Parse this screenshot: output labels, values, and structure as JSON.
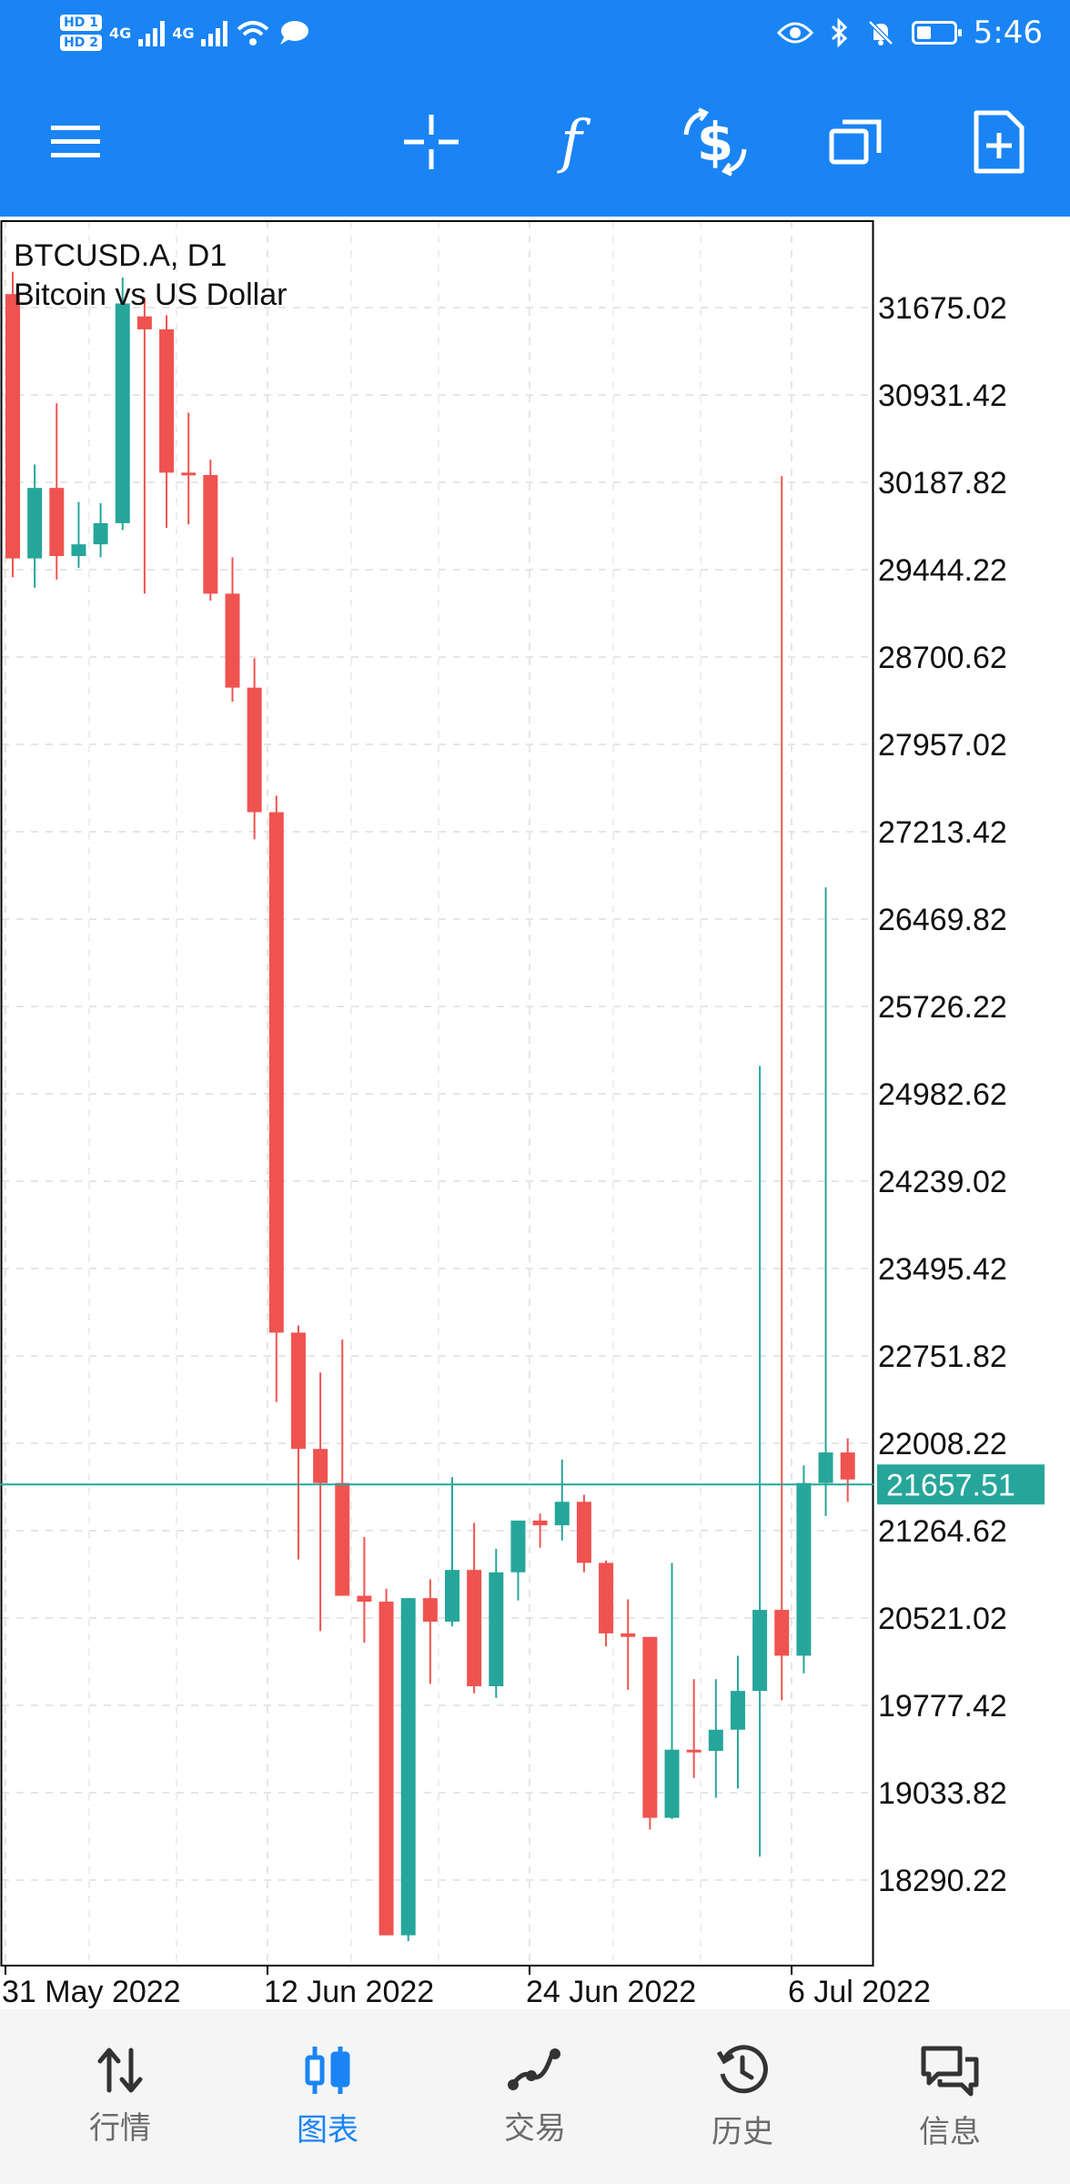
{
  "status_bar": {
    "hd_1": "HD 1",
    "hd_2": "HD 2",
    "network_1": "4G",
    "network_2": "4G",
    "time": "5:46"
  },
  "toolbar": {
    "menu_icon": "hamburger-icon",
    "buttons": [
      "crosshair-icon",
      "indicators-icon",
      "trade-icon",
      "objects-icon",
      "new-order-icon"
    ],
    "accent": "#1a84f4"
  },
  "chart_data": {
    "type": "candlestick",
    "title": "BTCUSD.A, D1",
    "subtitle": "Bitcoin vs US Dollar",
    "price_ticks": [
      "31675.02",
      "30931.42",
      "30187.82",
      "29444.22",
      "28700.62",
      "27957.02",
      "27213.42",
      "26469.82",
      "25726.22",
      "24982.62",
      "24239.02",
      "23495.42",
      "22751.82",
      "22008.22",
      "21264.62",
      "20521.02",
      "19777.42",
      "19033.82",
      "18290.22"
    ],
    "date_ticks": [
      "31 May 2022",
      "12 Jun 2022",
      "24 Jun 2022",
      "6 Jul 2022"
    ],
    "current_price": "21657.51",
    "current_price_value": 21657.51,
    "bull_color": "#26a69a",
    "bear_color": "#ef5350",
    "candles": [
      {
        "o": 31790,
        "h": 31980,
        "l": 29380,
        "c": 29540
      },
      {
        "o": 29540,
        "h": 30340,
        "l": 29290,
        "c": 30140
      },
      {
        "o": 30140,
        "h": 30860,
        "l": 29360,
        "c": 29560
      },
      {
        "o": 29560,
        "h": 30020,
        "l": 29460,
        "c": 29660
      },
      {
        "o": 29660,
        "h": 30010,
        "l": 29550,
        "c": 29840
      },
      {
        "o": 29840,
        "h": 31930,
        "l": 29780,
        "c": 31710
      },
      {
        "o": 31600,
        "h": 31760,
        "l": 29240,
        "c": 31490
      },
      {
        "o": 31490,
        "h": 31610,
        "l": 29800,
        "c": 30270
      },
      {
        "o": 30270,
        "h": 30780,
        "l": 29830,
        "c": 30250
      },
      {
        "o": 30250,
        "h": 30380,
        "l": 29180,
        "c": 29240
      },
      {
        "o": 29240,
        "h": 29550,
        "l": 28320,
        "c": 28440
      },
      {
        "o": 28440,
        "h": 28690,
        "l": 27150,
        "c": 27380
      },
      {
        "o": 27380,
        "h": 27520,
        "l": 22360,
        "c": 22950
      },
      {
        "o": 22950,
        "h": 23010,
        "l": 21020,
        "c": 21960
      },
      {
        "o": 21960,
        "h": 22610,
        "l": 20410,
        "c": 21670
      },
      {
        "o": 21670,
        "h": 22890,
        "l": 20780,
        "c": 20710
      },
      {
        "o": 20710,
        "h": 21210,
        "l": 20310,
        "c": 20660
      },
      {
        "o": 20660,
        "h": 20770,
        "l": 17820,
        "c": 17820
      },
      {
        "o": 17820,
        "h": 20690,
        "l": 17770,
        "c": 20690
      },
      {
        "o": 20690,
        "h": 20850,
        "l": 19960,
        "c": 20490
      },
      {
        "o": 20490,
        "h": 21720,
        "l": 20450,
        "c": 20930
      },
      {
        "o": 20930,
        "h": 21330,
        "l": 19880,
        "c": 19940
      },
      {
        "o": 19940,
        "h": 21110,
        "l": 19840,
        "c": 20910
      },
      {
        "o": 20910,
        "h": 21350,
        "l": 20670,
        "c": 21350
      },
      {
        "o": 21350,
        "h": 21410,
        "l": 21120,
        "c": 21310
      },
      {
        "o": 21310,
        "h": 21870,
        "l": 21180,
        "c": 21510
      },
      {
        "o": 21510,
        "h": 21570,
        "l": 20910,
        "c": 20990
      },
      {
        "o": 20990,
        "h": 21010,
        "l": 20280,
        "c": 20390
      },
      {
        "o": 20390,
        "h": 20680,
        "l": 19910,
        "c": 20360
      },
      {
        "o": 20360,
        "h": 20350,
        "l": 18720,
        "c": 18820
      },
      {
        "o": 18820,
        "h": 20990,
        "l": 18810,
        "c": 19400
      },
      {
        "o": 19400,
        "h": 20000,
        "l": 19160,
        "c": 19390
      },
      {
        "o": 19390,
        "h": 20000,
        "l": 18990,
        "c": 19570
      },
      {
        "o": 19570,
        "h": 20200,
        "l": 19070,
        "c": 19900
      },
      {
        "o": 19900,
        "h": 25220,
        "l": 18490,
        "c": 20590
      },
      {
        "o": 20590,
        "h": 30240,
        "l": 19820,
        "c": 20200
      },
      {
        "o": 20200,
        "h": 21820,
        "l": 20050,
        "c": 21670
      },
      {
        "o": 21670,
        "h": 26740,
        "l": 21390,
        "c": 21930
      },
      {
        "o": 21930,
        "h": 22050,
        "l": 21510,
        "c": 21700
      }
    ]
  },
  "bottom_nav": {
    "items": [
      {
        "label": "行情",
        "icon": "quotes-icon"
      },
      {
        "label": "图表",
        "icon": "chart-icon"
      },
      {
        "label": "交易",
        "icon": "trade-icon"
      },
      {
        "label": "历史",
        "icon": "history-icon"
      },
      {
        "label": "信息",
        "icon": "messages-icon"
      }
    ]
  }
}
